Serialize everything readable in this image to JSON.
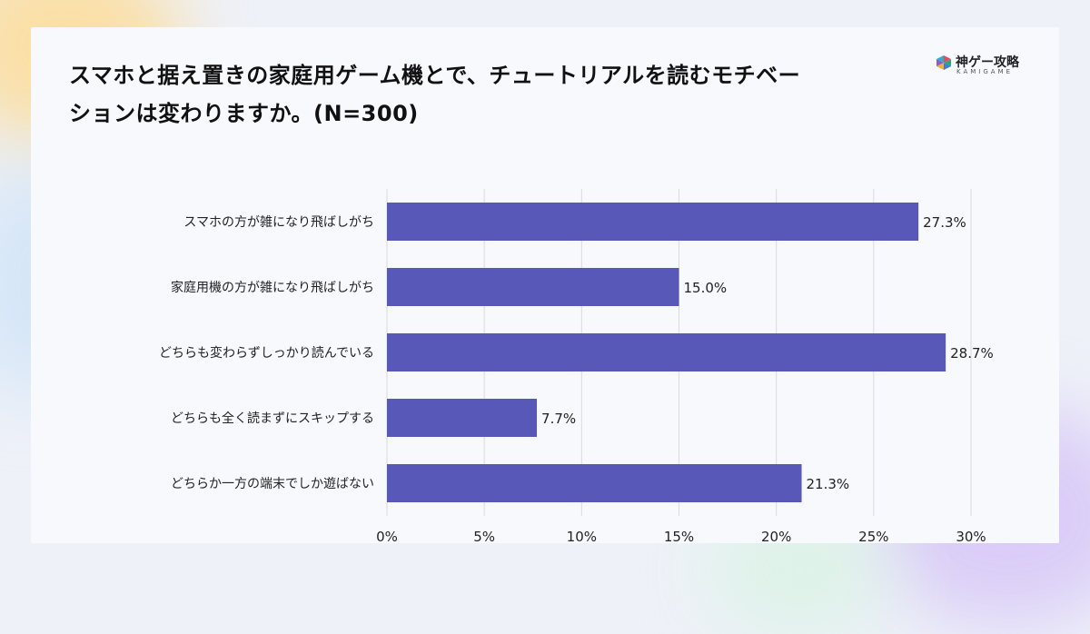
{
  "logo": {
    "name": "神ゲー攻略",
    "sub": "KAMIGAME"
  },
  "chart_data": {
    "type": "bar",
    "orientation": "horizontal",
    "title": "スマホと据え置きの家庭用ゲーム機とで、チュートリアルを読むモチベーションは変わりますか。(N=300)",
    "title_lines": [
      "スマホと据え置きの家庭用ゲーム機とで、チュートリアルを読むモチベー",
      "ションは変わりますか。(N=300)"
    ],
    "categories": [
      "スマホの方が雑になり飛ばしがち",
      "家庭用機の方が雑になり飛ばしがち",
      "どちらも変わらずしっかり読んでいる",
      "どちらも全く読まずにスキップする",
      "どちらか一方の端末でしか遊ばない"
    ],
    "values": [
      27.3,
      15.0,
      28.7,
      7.7,
      21.3
    ],
    "value_labels": [
      "27.3%",
      "15.0%",
      "28.7%",
      "7.7%",
      "21.3%"
    ],
    "xlim": [
      0,
      30
    ],
    "xticks": [
      0,
      5,
      10,
      15,
      20,
      25,
      30
    ],
    "xtick_labels": [
      "0%",
      "5%",
      "10%",
      "15%",
      "20%",
      "25%",
      "30%"
    ],
    "xlabel": "",
    "ylabel": "",
    "grid": "vertical",
    "legend": "none",
    "bar_color": "#5858b8",
    "grid_color": "#d9dbe3"
  }
}
